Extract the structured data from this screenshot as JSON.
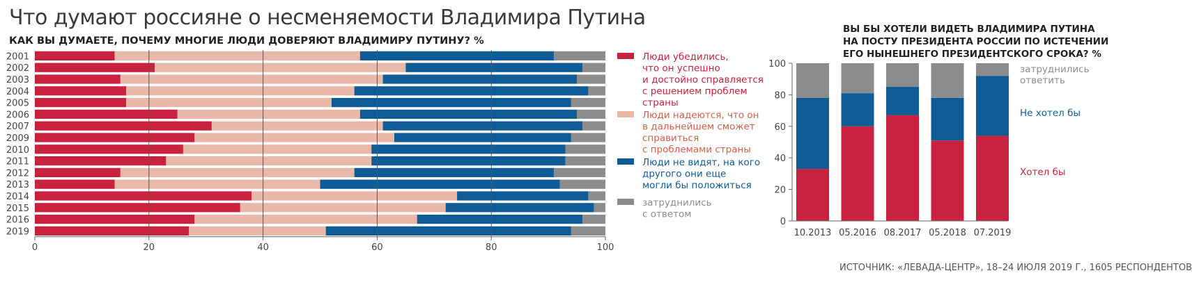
{
  "title": "Что думают россияне о несменяемости Владимира Путина",
  "source": "ИСТОЧНИК: «ЛЕВАДА-ЦЕНТР», 18–24 ИЮЛЯ 2019 Г., 1605 РЕСПОНДЕНТОВ",
  "colors": {
    "red": "#c8223f",
    "pink": "#e8b8a8",
    "blue": "#0f5b96",
    "gray": "#8c8c8c",
    "grid": "#555555"
  },
  "chart_data": [
    {
      "type": "bar",
      "orientation": "horizontal",
      "stacked": true,
      "title": "КАК ВЫ ДУМАЕТЕ, ПОЧЕМУ МНОГИЕ ЛЮДИ ДОВЕРЯЮТ ВЛАДИМИРУ ПУТИНУ? %",
      "categories": [
        "2001",
        "2002",
        "2003",
        "2004",
        "2005",
        "2006",
        "2007",
        "2009",
        "2010",
        "2011",
        "2012",
        "2013",
        "2014",
        "2015",
        "2016",
        "2019"
      ],
      "xlim": [
        0,
        100
      ],
      "xticks": [
        "0",
        "20",
        "40",
        "60",
        "80",
        "100"
      ],
      "grid": true,
      "legend_position": "right",
      "series": [
        {
          "name": "Люди убедились, что он успешно и достойно справляется с решением проблем страны",
          "legend_lines": [
            "Люди убедились,",
            "что он успешно",
            "и достойно справляется",
            "с решением проблем",
            "страны"
          ],
          "color": "#c8223f",
          "values": [
            14,
            21,
            15,
            16,
            16,
            25,
            31,
            28,
            26,
            23,
            15,
            14,
            38,
            36,
            28,
            27
          ]
        },
        {
          "name": "Люди надеются, что он в дальнейшем сможет справиться с проблемами страны",
          "legend_lines": [
            "Люди надеются, что он",
            "в дальнейшем сможет",
            "справиться",
            "с проблемами страны"
          ],
          "color": "#e8b8a8",
          "legend_text_color": "#d0604a",
          "values": [
            43,
            44,
            46,
            40,
            36,
            32,
            30,
            35,
            33,
            36,
            41,
            36,
            36,
            36,
            39,
            24
          ]
        },
        {
          "name": "Люди не видят, на кого другого они еще могли бы положиться",
          "legend_lines": [
            "Люди не видят, на кого",
            "другого они еще",
            "могли бы положиться"
          ],
          "color": "#0f5b96",
          "values": [
            34,
            31,
            34,
            41,
            42,
            38,
            35,
            31,
            34,
            34,
            35,
            42,
            23,
            26,
            29,
            43
          ]
        },
        {
          "name": "затруднились с ответом",
          "legend_lines": [
            "затруднились",
            "с ответом"
          ],
          "color": "#8c8c8c",
          "values": [
            9,
            4,
            5,
            3,
            6,
            5,
            4,
            6,
            7,
            7,
            9,
            8,
            3,
            2,
            4,
            6
          ]
        }
      ]
    },
    {
      "type": "bar",
      "orientation": "vertical",
      "stacked": true,
      "title": "ВЫ БЫ ХОТЕЛИ ВИДЕТЬ ВЛАДИМИРА ПУТИНА НА ПОСТУ ПРЕЗИДЕНТА РОССИИ ПО ИСТЕЧЕНИИ ЕГО НЫНЕШНЕГО ПРЕЗИДЕНТСКОГО СРОКА? %",
      "title_lines": [
        "ВЫ БЫ ХОТЕЛИ ВИДЕТЬ ВЛАДИМИРА ПУТИНА",
        "НА ПОСТУ ПРЕЗИДЕНТА РОССИИ ПО ИСТЕЧЕНИИ",
        "ЕГО НЫНЕШНЕГО ПРЕЗИДЕНТСКОГО СРОКА? %"
      ],
      "categories": [
        "10.2013",
        "05.2016",
        "08.2017",
        "05.2018",
        "07.2019"
      ],
      "ylim": [
        0,
        100
      ],
      "yticks": [
        "0",
        "20",
        "40",
        "60",
        "80",
        "100"
      ],
      "grid": false,
      "legend_position": "right",
      "series": [
        {
          "name": "Хотел бы",
          "legend_lines": [
            "Хотел бы"
          ],
          "color": "#c8223f",
          "values": [
            33,
            60,
            67,
            51,
            54
          ]
        },
        {
          "name": "Не хотел бы",
          "legend_lines": [
            "Не хотел бы"
          ],
          "color": "#0f5b96",
          "values": [
            45,
            21,
            18,
            27,
            38
          ]
        },
        {
          "name": "затруднились ответить",
          "legend_lines": [
            "затруднились",
            "ответить"
          ],
          "color": "#8c8c8c",
          "values": [
            22,
            19,
            15,
            22,
            8
          ]
        }
      ]
    }
  ]
}
